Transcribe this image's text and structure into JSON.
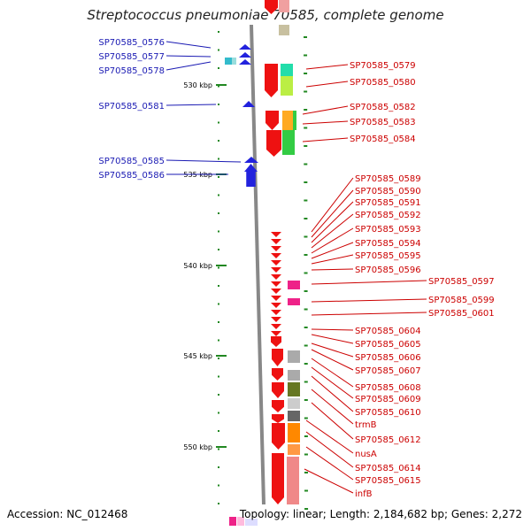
{
  "title": "Streptococcus pneumoniae 70585, complete genome",
  "footer": {
    "accession": "Accession: NC_012468",
    "summary": "Topology: linear; Length: 2,184,682 bp; Genes: 2,272"
  },
  "axis": {
    "unit": "kbp",
    "ticks": [
      "530 kbp",
      "535 kbp",
      "540 kbp",
      "545 kbp",
      "550 kbp"
    ]
  },
  "colors": {
    "forward_gene": "#2222dd",
    "reverse_gene": "#ee1111",
    "left_label": "#1a1ab3",
    "right_label": "#cc0000",
    "tick": "#228822",
    "backbone": "#888888"
  },
  "left_labels": [
    "SP70585_0576",
    "SP70585_0577",
    "SP70585_0578",
    "SP70585_0581",
    "SP70585_0585",
    "SP70585_0586"
  ],
  "right_labels": [
    "SP70585_0579",
    "SP70585_0580",
    "SP70585_0582",
    "SP70585_0583",
    "SP70585_0584",
    "SP70585_0589",
    "SP70585_0590",
    "SP70585_0591",
    "SP70585_0592",
    "SP70585_0593",
    "SP70585_0594",
    "SP70585_0595",
    "SP70585_0596",
    "SP70585_0597",
    "SP70585_0599",
    "SP70585_0601",
    "SP70585_0604",
    "SP70585_0605",
    "SP70585_0606",
    "SP70585_0607",
    "SP70585_0608",
    "SP70585_0609",
    "SP70585_0610",
    "trmB",
    "SP70585_0612",
    "nusA",
    "SP70585_0614",
    "SP70585_0615",
    "infB"
  ]
}
